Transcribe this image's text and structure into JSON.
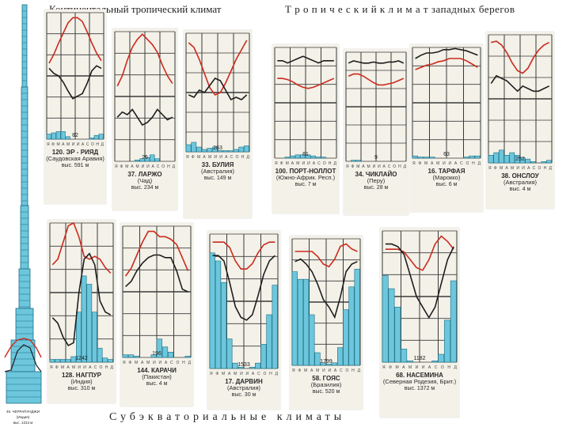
{
  "headings": {
    "continental": "Континентальный тропический климат",
    "west_coast": "Т р о п и ч е с к и й   к л и м а т  западных берегов",
    "subequatorial": "Субэкваториальные климаты"
  },
  "colors": {
    "temp": "#cc2a1e",
    "humid": "#1e1e1e",
    "precip": "#6cc6dc",
    "grid": "#3a3a3a"
  },
  "chart_data": {
    "type": "bar",
    "months": [
      "Я",
      "Ф",
      "М",
      "А",
      "М",
      "И",
      "И",
      "А",
      "С",
      "О",
      "Н",
      "Д"
    ],
    "stations": [
      {
        "id": "ernyad",
        "title": "120. ЭР - РИЯД",
        "region": "(Саудовская Аравия)",
        "elev": "выс. 591 м",
        "precip_label": "82",
        "temp": [
          0.4,
          0.33,
          0.24,
          0.16,
          0.08,
          0.04,
          0.04,
          0.07,
          0.15,
          0.24,
          0.32,
          0.38
        ],
        "humid": [
          0.44,
          0.48,
          0.5,
          0.55,
          0.62,
          0.68,
          0.66,
          0.64,
          0.56,
          0.46,
          0.42,
          0.44
        ],
        "precip": [
          0.04,
          0.05,
          0.06,
          0.06,
          0.02,
          0,
          0,
          0,
          0,
          0.01,
          0.03,
          0.04
        ]
      },
      {
        "id": "larzho",
        "title": "37. ЛАРЖО",
        "region": "(Чад)",
        "elev": "выс. 234 м",
        "precip_label": "26",
        "temp": [
          0.42,
          0.34,
          0.22,
          0.12,
          0.06,
          0.02,
          0.06,
          0.1,
          0.16,
          0.26,
          0.34,
          0.4
        ],
        "humid": [
          0.66,
          0.62,
          0.64,
          0.6,
          0.66,
          0.72,
          0.7,
          0.66,
          0.6,
          0.64,
          0.68,
          0.66
        ],
        "precip": [
          0,
          0,
          0,
          0,
          0.01,
          0.02,
          0.03,
          0.05,
          0.02,
          0,
          0,
          0
        ]
      },
      {
        "id": "bulia",
        "title": "33. БУЛИЯ",
        "region": "(Австралия)",
        "elev": "выс. 149 м",
        "precip_label": "263",
        "temp": [
          0.08,
          0.12,
          0.22,
          0.34,
          0.46,
          0.52,
          0.5,
          0.42,
          0.32,
          0.22,
          0.14,
          0.06
        ],
        "humid": [
          0.52,
          0.54,
          0.48,
          0.5,
          0.44,
          0.38,
          0.4,
          0.48,
          0.56,
          0.54,
          0.56,
          0.52
        ],
        "precip": [
          0.06,
          0.08,
          0.04,
          0.02,
          0.03,
          0.04,
          0.01,
          0.01,
          0.01,
          0.02,
          0.04,
          0.05
        ]
      },
      {
        "id": "portnolot",
        "title": "100. ПОРТ-НОЛЛОТ",
        "region": "(Южно-Африк. Респ.)",
        "elev": "выс. 7 м",
        "precip_label": "61",
        "temp": [
          0.28,
          0.28,
          0.29,
          0.31,
          0.34,
          0.36,
          0.37,
          0.36,
          0.34,
          0.32,
          0.3,
          0.28
        ],
        "humid": [
          0.12,
          0.12,
          0.14,
          0.12,
          0.1,
          0.08,
          0.1,
          0.12,
          0.14,
          0.12,
          0.12,
          0.12
        ],
        "precip": [
          0,
          0,
          0.01,
          0.02,
          0.03,
          0.03,
          0.03,
          0.02,
          0.01,
          0.01,
          0,
          0
        ]
      },
      {
        "id": "chiklayo",
        "title": "34. ЧИКЛАЙО",
        "region": "(Перу)",
        "elev": "выс. 28 м",
        "precip_label": "9",
        "temp": [
          0.22,
          0.2,
          0.2,
          0.22,
          0.25,
          0.28,
          0.3,
          0.3,
          0.29,
          0.28,
          0.26,
          0.24
        ],
        "humid": [
          0.1,
          0.08,
          0.09,
          0.1,
          0.1,
          0.09,
          0.1,
          0.1,
          0.09,
          0.09,
          0.08,
          0.1
        ],
        "precip": [
          0,
          0.01,
          0.01,
          0,
          0,
          0,
          0,
          0,
          0,
          0,
          0,
          0
        ]
      },
      {
        "id": "tarfaya",
        "title": "16. ТАРФАЯ",
        "region": "(Марокко)",
        "elev": "выс. 6 м",
        "precip_label": "63",
        "temp": [
          0.2,
          0.18,
          0.16,
          0.15,
          0.13,
          0.12,
          0.1,
          0.1,
          0.1,
          0.12,
          0.15,
          0.18
        ],
        "humid": [
          0.1,
          0.07,
          0.05,
          0.05,
          0.04,
          0.02,
          0.02,
          0.01,
          0.02,
          0.03,
          0.05,
          0.07
        ],
        "precip": [
          0.02,
          0.01,
          0.01,
          0.01,
          0,
          0,
          0,
          0,
          0,
          0.01,
          0.02,
          0.02
        ]
      },
      {
        "id": "onslow",
        "title": "38. ОНСЛОУ",
        "region": "(Австралия)",
        "elev": "выс. 4 м",
        "precip_label": "252",
        "temp": [
          0.06,
          0.05,
          0.08,
          0.14,
          0.22,
          0.28,
          0.3,
          0.26,
          0.18,
          0.12,
          0.08,
          0.06
        ],
        "humid": [
          0.38,
          0.32,
          0.34,
          0.36,
          0.4,
          0.44,
          0.4,
          0.42,
          0.44,
          0.44,
          0.42,
          0.4
        ],
        "precip": [
          0.06,
          0.08,
          0.1,
          0.06,
          0.08,
          0.06,
          0.04,
          0.03,
          0.01,
          0,
          0.01,
          0.02
        ]
      },
      {
        "id": "nagpur",
        "title": "128. НАГПУР",
        "region": "(Индия)",
        "elev": "выс. 310 м",
        "precip_label": "1242",
        "temp": [
          0.3,
          0.26,
          0.14,
          0.02,
          0.0,
          0.1,
          0.24,
          0.26,
          0.24,
          0.26,
          0.32,
          0.36
        ],
        "humid": [
          0.68,
          0.72,
          0.82,
          0.88,
          0.86,
          0.5,
          0.26,
          0.22,
          0.3,
          0.56,
          0.64,
          0.66
        ],
        "precip": [
          0.02,
          0.02,
          0.02,
          0.02,
          0.04,
          0.36,
          0.62,
          0.56,
          0.36,
          0.1,
          0.03,
          0.02
        ]
      },
      {
        "id": "karachi",
        "title": "144. КАРАЧИ",
        "region": "(Пакистан)",
        "elev": "выс. 4 м",
        "precip_label": "196",
        "temp": [
          0.38,
          0.32,
          0.22,
          0.12,
          0.04,
          0.04,
          0.08,
          0.08,
          0.1,
          0.14,
          0.24,
          0.34
        ],
        "humid": [
          0.46,
          0.42,
          0.34,
          0.28,
          0.24,
          0.22,
          0.22,
          0.24,
          0.24,
          0.34,
          0.48,
          0.5
        ],
        "precip": [
          0.02,
          0.02,
          0.01,
          0,
          0,
          0.02,
          0.14,
          0.08,
          0.04,
          0,
          0,
          0.01
        ]
      },
      {
        "id": "darwin",
        "title": "17. ДАРВИН",
        "region": "(Австралия)",
        "elev": "выс. 30 м",
        "precip_label": "1533",
        "temp": [
          0.06,
          0.06,
          0.06,
          0.1,
          0.2,
          0.26,
          0.26,
          0.22,
          0.14,
          0.08,
          0.06,
          0.06
        ],
        "humid": [
          0.16,
          0.16,
          0.2,
          0.36,
          0.54,
          0.62,
          0.64,
          0.6,
          0.46,
          0.3,
          0.2,
          0.16
        ],
        "precip": [
          0.86,
          0.8,
          0.64,
          0.22,
          0.04,
          0.01,
          0,
          0.01,
          0.04,
          0.18,
          0.4,
          0.62
        ]
      },
      {
        "id": "goias",
        "title": "58. ГОЯС",
        "region": "(Бразилия)",
        "elev": "выс. 520 м",
        "precip_label": "1799",
        "temp": [
          0.1,
          0.1,
          0.1,
          0.1,
          0.14,
          0.2,
          0.22,
          0.16,
          0.06,
          0.04,
          0.08,
          0.1
        ],
        "humid": [
          0.18,
          0.16,
          0.2,
          0.26,
          0.36,
          0.48,
          0.54,
          0.62,
          0.46,
          0.26,
          0.2,
          0.18
        ],
        "precip": [
          0.74,
          0.68,
          0.68,
          0.4,
          0.1,
          0.02,
          0.01,
          0.02,
          0.14,
          0.44,
          0.62,
          0.76
        ]
      },
      {
        "id": "nasemina",
        "title": "68. НАСЕМИНА",
        "region": "(Северная Родезия, Брит.)",
        "elev": "выс. 1372 м",
        "precip_label": "1182",
        "temp": [
          0.14,
          0.14,
          0.14,
          0.16,
          0.22,
          0.28,
          0.3,
          0.22,
          0.1,
          0.04,
          0.08,
          0.14
        ],
        "humid": [
          0.1,
          0.1,
          0.12,
          0.18,
          0.34,
          0.5,
          0.58,
          0.66,
          0.58,
          0.4,
          0.22,
          0.12
        ],
        "precip": [
          0.66,
          0.56,
          0.42,
          0.1,
          0.01,
          0,
          0,
          0,
          0.01,
          0.06,
          0.32,
          0.62
        ]
      }
    ]
  },
  "tower": {
    "title": "45. ЧЕРРАПУНДЖИ",
    "region": "(Индия)",
    "elev": "выс. 1313 м"
  }
}
